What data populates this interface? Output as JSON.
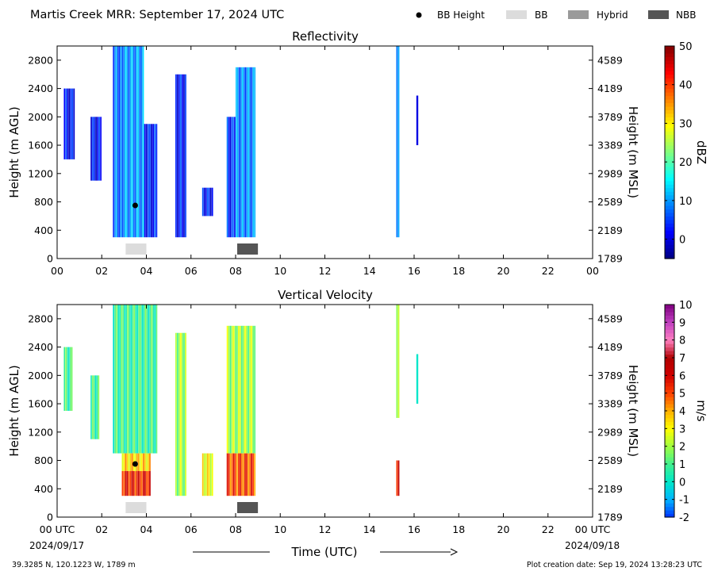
{
  "header": {
    "title": "Martis Creek MRR:  September 17, 2024 UTC",
    "legend": [
      {
        "label": "BB Height",
        "kind": "marker",
        "color": "#000000"
      },
      {
        "label": "BB",
        "kind": "band",
        "color": "#dcdcdc"
      },
      {
        "label": "Hybrid",
        "kind": "band",
        "color": "#9a9a9a"
      },
      {
        "label": "NBB",
        "kind": "band",
        "color": "#555555"
      }
    ]
  },
  "footer": {
    "location": "39.3285 N, 120.1223 W, 1789 m",
    "creation_date": "Plot creation date: Sep 19, 2024 13:28:23 UTC",
    "date_start": "2024/09/17",
    "date_end": "2024/09/18",
    "time_axis_label": "Time (UTC)"
  },
  "chart_data": [
    {
      "type": "heatmap",
      "title": "Reflectivity",
      "ylabel": "Height (m AGL)",
      "y2label": "Height (m MSL)",
      "colorbar_label": "dBZ",
      "colorbar_ticks": [
        "50",
        "40",
        "30",
        "20",
        "10",
        "0"
      ],
      "colorbar_range": [
        -5,
        50
      ],
      "colormap": [
        "#00007f",
        "#0000ff",
        "#007fff",
        "#00ffff",
        "#7fff7f",
        "#ffff00",
        "#ff7f00",
        "#ff0000",
        "#7f0000"
      ],
      "xlim": [
        0,
        24
      ],
      "ylim": [
        0,
        3000
      ],
      "x_ticks": [
        "00",
        "02",
        "04",
        "06",
        "08",
        "10",
        "12",
        "14",
        "16",
        "18",
        "20",
        "22",
        "00"
      ],
      "y_ticks": [
        "0",
        "400",
        "800",
        "1200",
        "1600",
        "2000",
        "2400",
        "2800"
      ],
      "y2_ticks": [
        "1789",
        "2189",
        "2589",
        "2989",
        "3389",
        "3789",
        "4189",
        "4589"
      ],
      "bb_height": [
        {
          "x": 3.5,
          "y": 750
        }
      ],
      "bb_bands": [
        {
          "type": "BB",
          "x_start": 3.0,
          "x_end": 4.0
        },
        {
          "type": "NBB",
          "x_start": 8.0,
          "x_end": 9.0
        }
      ],
      "echo_regions": [
        {
          "x_start": 0.3,
          "x_end": 0.8,
          "y_bottom": 1400,
          "y_top": 2400,
          "value": 2
        },
        {
          "x_start": 1.5,
          "x_end": 2.0,
          "y_bottom": 1100,
          "y_top": 2000,
          "value": 2
        },
        {
          "x_start": 2.5,
          "x_end": 2.9,
          "y_bottom": 300,
          "y_top": 3000,
          "value": 8
        },
        {
          "x_start": 2.9,
          "x_end": 3.9,
          "y_bottom": 300,
          "y_top": 3000,
          "value": 10
        },
        {
          "x_start": 3.9,
          "x_end": 4.5,
          "y_bottom": 300,
          "y_top": 1900,
          "value": 3
        },
        {
          "x_start": 5.3,
          "x_end": 5.8,
          "y_bottom": 300,
          "y_top": 2600,
          "value": 3
        },
        {
          "x_start": 6.5,
          "x_end": 7.0,
          "y_bottom": 600,
          "y_top": 1000,
          "value": 3
        },
        {
          "x_start": 7.6,
          "x_end": 8.0,
          "y_bottom": 300,
          "y_top": 2000,
          "value": 4
        },
        {
          "x_start": 8.0,
          "x_end": 8.9,
          "y_bottom": 300,
          "y_top": 2700,
          "value": 9
        },
        {
          "x_start": 15.2,
          "x_end": 15.35,
          "y_bottom": 300,
          "y_top": 3000,
          "value": 7
        },
        {
          "x_start": 16.1,
          "x_end": 16.2,
          "y_bottom": 1600,
          "y_top": 2300,
          "value": 2
        }
      ]
    },
    {
      "type": "heatmap",
      "title": "Vertical Velocity",
      "ylabel": "Height (m AGL)",
      "y2label": "Height (m MSL)",
      "colorbar_label": "m/s",
      "colorbar_ticks": [
        "10",
        "9",
        "8",
        "7",
        "6",
        "5",
        "4",
        "3",
        "2",
        "1",
        "0",
        "-1",
        "-2"
      ],
      "colorbar_range": [
        -2,
        10
      ],
      "colormap": [
        "#0030ff",
        "#00b4ff",
        "#00e8c8",
        "#40f090",
        "#a0ff40",
        "#ffff00",
        "#ffb000",
        "#ff4000",
        "#d00000",
        "#b00000",
        "#ff80c0",
        "#c040c0",
        "#800080"
      ],
      "xlim": [
        0,
        24
      ],
      "ylim": [
        0,
        3000
      ],
      "x_ticks": [
        "00 UTC",
        "02",
        "04",
        "06",
        "08",
        "10",
        "12",
        "14",
        "16",
        "18",
        "20",
        "22",
        "00 UTC"
      ],
      "y_ticks": [
        "0",
        "400",
        "800",
        "1200",
        "1600",
        "2000",
        "2400",
        "2800"
      ],
      "y2_ticks": [
        "1789",
        "2189",
        "2589",
        "2989",
        "3389",
        "3789",
        "4189",
        "4589"
      ],
      "bb_height": [
        {
          "x": 3.5,
          "y": 750
        }
      ],
      "bb_bands": [
        {
          "type": "BB",
          "x_start": 3.0,
          "x_end": 4.0
        },
        {
          "type": "NBB",
          "x_start": 8.0,
          "x_end": 9.0
        }
      ],
      "echo_regions": [
        {
          "x_start": 0.3,
          "x_end": 0.7,
          "y_bottom": 1500,
          "y_top": 2400,
          "value": 0.8
        },
        {
          "x_start": 1.5,
          "x_end": 1.9,
          "y_bottom": 1100,
          "y_top": 2000,
          "value": 0.8
        },
        {
          "x_start": 2.5,
          "x_end": 4.5,
          "y_bottom": 900,
          "y_top": 3000,
          "value": 0.8
        },
        {
          "x_start": 2.9,
          "x_end": 4.2,
          "y_bottom": 650,
          "y_top": 900,
          "value": 3.5
        },
        {
          "x_start": 2.9,
          "x_end": 4.2,
          "y_bottom": 300,
          "y_top": 650,
          "value": 5.5
        },
        {
          "x_start": 5.3,
          "x_end": 5.8,
          "y_bottom": 300,
          "y_top": 2600,
          "value": 2
        },
        {
          "x_start": 6.5,
          "x_end": 7.0,
          "y_bottom": 300,
          "y_top": 900,
          "value": 3
        },
        {
          "x_start": 7.6,
          "x_end": 8.9,
          "y_bottom": 900,
          "y_top": 2700,
          "value": 2
        },
        {
          "x_start": 7.6,
          "x_end": 8.9,
          "y_bottom": 300,
          "y_top": 900,
          "value": 5
        },
        {
          "x_start": 15.2,
          "x_end": 15.35,
          "y_bottom": 1400,
          "y_top": 3000,
          "value": 1.5
        },
        {
          "x_start": 15.2,
          "x_end": 15.35,
          "y_bottom": 300,
          "y_top": 800,
          "value": 5.5
        },
        {
          "x_start": 16.1,
          "x_end": 16.2,
          "y_bottom": 1600,
          "y_top": 2300,
          "value": 0.8
        }
      ]
    }
  ]
}
